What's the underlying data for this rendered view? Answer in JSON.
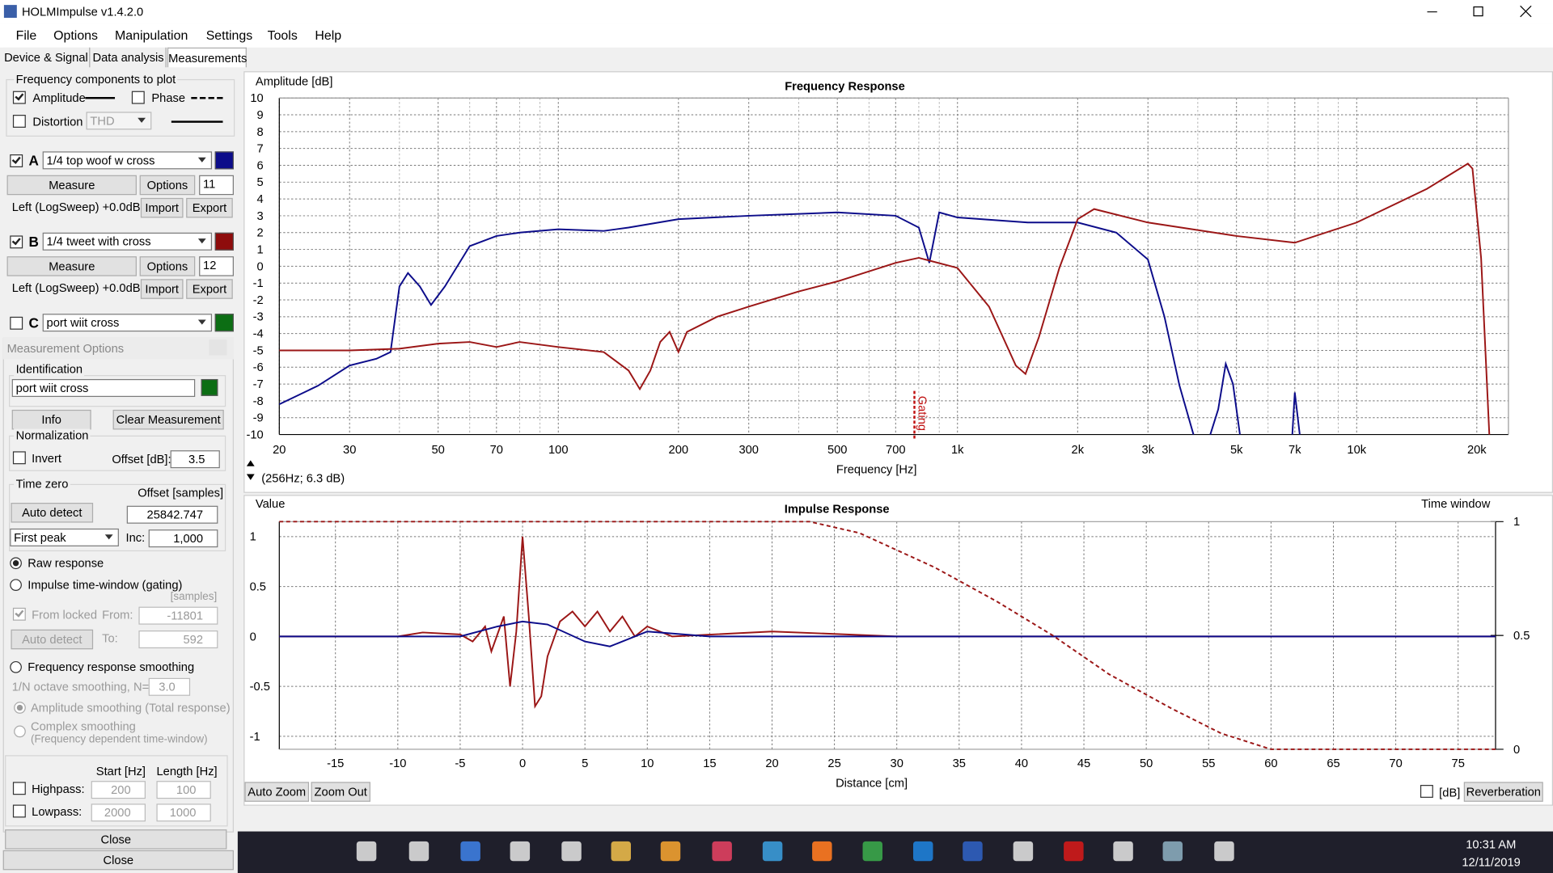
{
  "window": {
    "title": "HOLMImpulse  v1.4.2.0"
  },
  "menu": [
    "File",
    "Options",
    "Manipulation",
    "Settings",
    "Tools",
    "Help"
  ],
  "tabs": [
    "Device & Signal",
    "Data analysis",
    "Measurements"
  ],
  "components": {
    "title": "Frequency components to plot",
    "amplitude": {
      "label": "Amplitude",
      "checked": true
    },
    "phase": {
      "label": "Phase",
      "checked": false
    },
    "distortion": {
      "label": "Distortion",
      "checked": false
    },
    "distortion_type": "THD"
  },
  "measurements": [
    {
      "letter": "A",
      "checked": true,
      "name": "1/4 top woof w cross",
      "color": "#0c0c8a",
      "measure": "Measure",
      "options": "Options",
      "number": "11",
      "source": "Left (LogSweep) +0.0dB",
      "import": "Import",
      "export": "Export"
    },
    {
      "letter": "B",
      "checked": true,
      "name": "1/4 tweet with cross",
      "color": "#8e0c0c",
      "measure": "Measure",
      "options": "Options",
      "number": "12",
      "source": "Left (LogSweep) +0.0dB",
      "import": "Import",
      "export": "Export"
    },
    {
      "letter": "C",
      "checked": false,
      "name": "port wiit cross",
      "color": "#0c6e14"
    }
  ],
  "options_dialog": {
    "title": "Measurement Options",
    "identification": {
      "title": "Identification",
      "name": "port wiit cross",
      "color": "#0c6e14"
    },
    "info": "Info",
    "clear": "Clear Measurement",
    "normalization": {
      "title": "Normalization",
      "invert": {
        "label": "Invert",
        "checked": false
      },
      "offset_label": "Offset [dB]:",
      "offset": "3.5"
    },
    "time_zero": {
      "title": "Time zero",
      "offset_label": "Offset [samples]",
      "auto_detect": "Auto detect",
      "offset": "25842.747",
      "method": "First peak",
      "inc_label": "Inc:",
      "inc": "1,000"
    },
    "raw_response": {
      "label": "Raw response",
      "selected": true
    },
    "gating": {
      "label": "Impulse time-window (gating)",
      "selected": false,
      "unit": "[samples]",
      "from_locked": {
        "label": "From locked",
        "checked": true
      },
      "from_label": "From:",
      "from": "-11801",
      "auto_detect": "Auto detect",
      "to_label": "To:",
      "to": "592"
    },
    "smoothing": {
      "label": "Frequency response smoothing",
      "selected": false,
      "n_label": "1/N octave smoothing, N=",
      "n": "3.0",
      "amplitude": {
        "label": "Amplitude smoothing (Total response)",
        "selected": true
      },
      "complex": {
        "label": "Complex smoothing",
        "note": "(Frequency dependent time-window)",
        "selected": false
      }
    },
    "filters": {
      "start_label": "Start [Hz]",
      "length_label": "Length [Hz]",
      "highpass": {
        "label": "Highpass:",
        "checked": false,
        "start": "200",
        "length": "100"
      },
      "lowpass": {
        "label": "Lowpass:",
        "checked": false,
        "start": "2000",
        "length": "1000"
      }
    },
    "close": "Close"
  },
  "close": "Close",
  "frequency_chart": {
    "type": "line",
    "title": "Frequency Response",
    "y_label": "Amplitude [dB]",
    "x_label": "Frequency [Hz]",
    "x_scale": "log",
    "xlim": [
      20,
      24000
    ],
    "ylim": [
      -10,
      10
    ],
    "grid": true,
    "xticks": [
      20,
      30,
      50,
      70,
      100,
      200,
      300,
      500,
      700,
      {
        "value": 1000,
        "label": "1k"
      },
      {
        "value": 2000,
        "label": "2k"
      },
      {
        "value": 3000,
        "label": "3k"
      },
      {
        "value": 5000,
        "label": "5k"
      },
      {
        "value": 7000,
        "label": "7k"
      },
      {
        "value": 10000,
        "label": "10k"
      },
      {
        "value": 20000,
        "label": "20k"
      }
    ],
    "xminor": [
      40,
      60,
      80,
      90,
      400,
      600,
      800,
      900,
      4000,
      6000,
      8000,
      9000
    ],
    "yticks": [
      -10,
      -9,
      -8,
      -7,
      -6,
      -5,
      -4,
      -3,
      -2,
      -1,
      0,
      1,
      2,
      3,
      4,
      5,
      6,
      7,
      8,
      9,
      10
    ],
    "cursor": "(256Hz; 6.3 dB)",
    "gating_marker": {
      "label": "Gating",
      "x": 780
    },
    "series": [
      {
        "color": "#0c0c8a",
        "x": [
          20,
          25,
          30,
          35,
          38,
          40,
          42,
          45,
          48,
          52,
          60,
          70,
          80,
          100,
          130,
          150,
          200,
          300,
          500,
          700,
          800,
          850,
          900,
          1000,
          1500,
          2000,
          2500,
          3000,
          3300,
          3600,
          3900,
          4100,
          4300,
          4500,
          4700,
          4900,
          5100,
          6000,
          6900,
          7000,
          7200
        ],
        "values": [
          -8.2,
          -7.1,
          -5.9,
          -5.5,
          -5.1,
          -1.2,
          -0.4,
          -1.2,
          -2.3,
          -1.2,
          1.2,
          1.8,
          2.0,
          2.2,
          2.1,
          2.3,
          2.8,
          3.0,
          3.2,
          3.0,
          2.3,
          0.2,
          3.2,
          2.9,
          2.6,
          2.6,
          2.0,
          0.4,
          -3.0,
          -7.1,
          -10,
          null,
          -10,
          -8.5,
          -5.8,
          -7,
          -10,
          null,
          -10,
          -7.5,
          -10
        ]
      },
      {
        "color": "#9b1616",
        "x": [
          20,
          30,
          40,
          50,
          60,
          70,
          80,
          100,
          130,
          150,
          160,
          170,
          180,
          190,
          200,
          210,
          250,
          300,
          400,
          500,
          700,
          800,
          1000,
          1200,
          1400,
          1480,
          1600,
          1800,
          2000,
          2200,
          3000,
          5000,
          7000,
          10000,
          15000,
          19000,
          19500,
          20500,
          21500
        ],
        "values": [
          -5.0,
          -5.0,
          -4.9,
          -4.6,
          -4.5,
          -4.8,
          -4.5,
          -4.8,
          -5.1,
          -6.2,
          -7.3,
          -6.2,
          -4.5,
          -3.9,
          -5.1,
          -3.9,
          -3.0,
          -2.4,
          -1.5,
          -0.9,
          0.2,
          0.5,
          -0.1,
          -2.4,
          -5.9,
          -6.4,
          -4.2,
          -0.1,
          2.8,
          3.4,
          2.6,
          1.8,
          1.4,
          2.6,
          4.6,
          6.1,
          5.8,
          0.5,
          -10
        ]
      }
    ]
  },
  "impulse_chart": {
    "type": "line",
    "title": "Impulse Response",
    "y_label": "Value",
    "y2_label": "Time window",
    "x_label": "Distance [cm]",
    "xlim": [
      -19.5,
      78
    ],
    "ylim": [
      -1.13,
      1.15
    ],
    "y2lim": [
      0,
      1
    ],
    "grid": true,
    "xticks": [
      -15,
      -10,
      -5,
      0,
      5,
      10,
      15,
      20,
      25,
      30,
      35,
      40,
      45,
      50,
      55,
      60,
      65,
      70,
      75
    ],
    "yticks": [
      -1,
      -0.5,
      0,
      0.5,
      1
    ],
    "y2ticks": [
      0,
      0.5,
      1
    ],
    "series": [
      {
        "color": "#9b1616",
        "x": [
          -19.5,
          -10,
          -8,
          -5,
          -4,
          -3,
          -2.5,
          -1.5,
          -1,
          -0.5,
          0,
          0.5,
          1,
          1.5,
          2,
          3,
          4,
          5,
          6,
          7,
          8,
          9,
          10,
          12,
          20,
          30,
          78
        ],
        "values": [
          0,
          0,
          0.04,
          0.02,
          -0.05,
          0.1,
          -0.15,
          0.2,
          -0.5,
          0.05,
          1.0,
          0.2,
          -0.7,
          -0.6,
          -0.2,
          0.15,
          0.25,
          0.1,
          0.25,
          0.05,
          0.2,
          0,
          0.1,
          0,
          0.05,
          0,
          0
        ]
      },
      {
        "color": "#0c0c8a",
        "x": [
          -19.5,
          -5,
          -2,
          0,
          2,
          5,
          7,
          10,
          15,
          30,
          78
        ],
        "values": [
          0,
          0,
          0.1,
          0.15,
          0.12,
          -0.05,
          -0.1,
          0.05,
          0,
          0,
          0
        ]
      },
      {
        "color": "#9b1616",
        "axis": "y2",
        "dashed": true,
        "x": [
          -19.5,
          23,
          27,
          33,
          38,
          42.5,
          47,
          52,
          56,
          60,
          78
        ],
        "values": [
          1,
          1,
          0.95,
          0.8,
          0.65,
          0.5,
          0.33,
          0.18,
          0.07,
          0,
          0
        ]
      }
    ]
  },
  "zoom": {
    "auto": "Auto Zoom",
    "out": "Zoom Out"
  },
  "db": {
    "label": "[dB]",
    "checked": false
  },
  "reverberation": "Reverberation",
  "taskbar": {
    "time": "10:31 AM",
    "date": "12/11/2019"
  }
}
